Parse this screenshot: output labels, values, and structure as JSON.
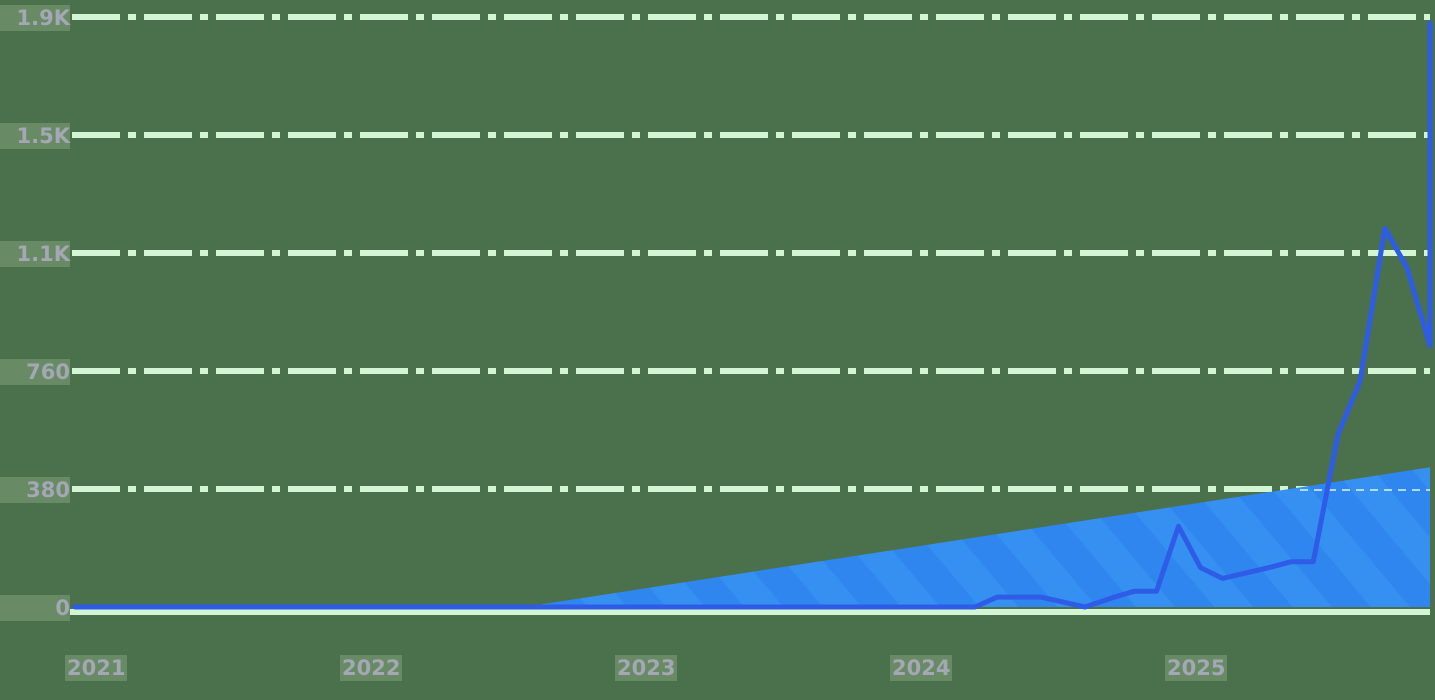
{
  "chart_data": {
    "type": "line",
    "title": "",
    "xlabel": "",
    "ylabel": "",
    "x_tick_labels": [
      "2021",
      "2022",
      "2023",
      "2024",
      "2025"
    ],
    "y_tick_labels": [
      "0",
      "380",
      "760",
      "1.1K",
      "1.5K",
      "1.9K"
    ],
    "y_tick_values": [
      0,
      380,
      760,
      1140,
      1520,
      1900
    ],
    "ylim": [
      0,
      1900
    ],
    "grid": true,
    "grid_style": "dash-dot",
    "legend": null,
    "series": [
      {
        "name": "line",
        "type": "line",
        "color": "#2e5ce6",
        "points": [
          {
            "x": 2021.0,
            "y": 0
          },
          {
            "x": 2024.2,
            "y": 0
          },
          {
            "x": 2024.28,
            "y": 32
          },
          {
            "x": 2024.44,
            "y": 32
          },
          {
            "x": 2024.6,
            "y": 0
          },
          {
            "x": 2024.7,
            "y": 30
          },
          {
            "x": 2024.78,
            "y": 51
          },
          {
            "x": 2024.86,
            "y": 51
          },
          {
            "x": 2024.94,
            "y": 260
          },
          {
            "x": 2025.02,
            "y": 127
          },
          {
            "x": 2025.1,
            "y": 92
          },
          {
            "x": 2025.27,
            "y": 127
          },
          {
            "x": 2025.35,
            "y": 146
          },
          {
            "x": 2025.43,
            "y": 146
          },
          {
            "x": 2025.52,
            "y": 556
          },
          {
            "x": 2025.6,
            "y": 727
          },
          {
            "x": 2025.69,
            "y": 1219
          },
          {
            "x": 2025.77,
            "y": 1095
          },
          {
            "x": 2025.86,
            "y": 841
          },
          {
            "x": 2025.94,
            "y": 1880
          }
        ]
      },
      {
        "name": "area",
        "type": "area",
        "color": "#2f86ee",
        "pattern": "diagonal-stripes",
        "points": [
          {
            "x": 2022.56,
            "y": 0
          },
          {
            "x": 2025.94,
            "y": 450
          }
        ]
      }
    ]
  },
  "colors": {
    "background": "#4a704c",
    "grid": "#d4f5d4",
    "line": "#2e5ce6",
    "area": "#2f86ee",
    "tick_text": "#a4a7b4"
  }
}
